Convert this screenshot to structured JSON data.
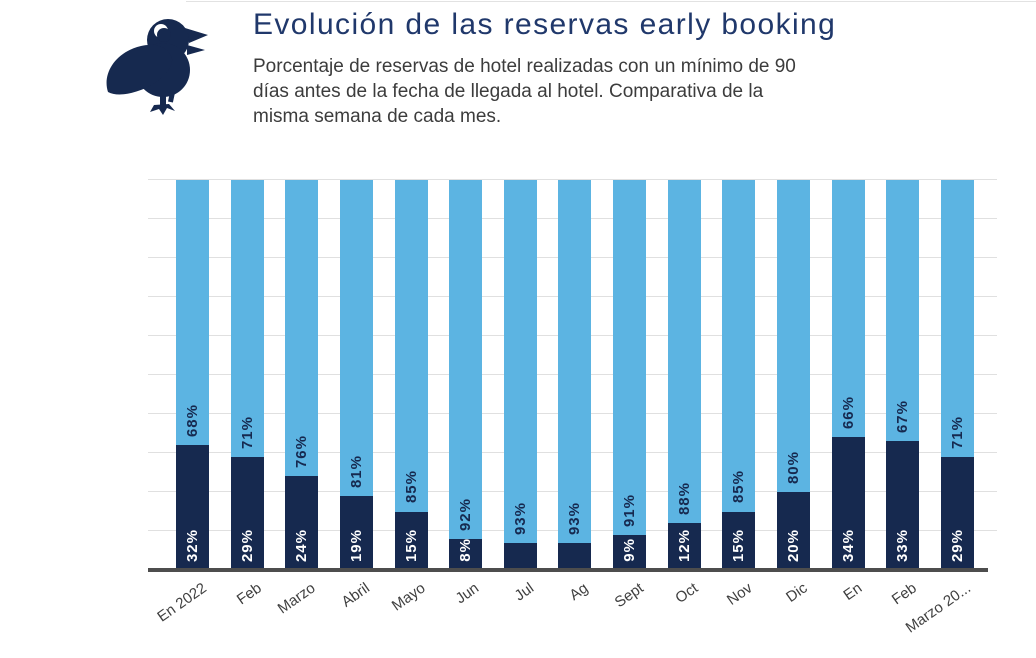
{
  "header": {
    "title": "Evolución de las reservas early booking",
    "subtitle_lines": [
      "Porcentaje de reservas de hotel realizadas con un mínimo de 90",
      "días antes de la fecha de llegada al hotel. Comparativa de la",
      "misma semana de cada mes."
    ]
  },
  "icons": {
    "logo": "bird-icon"
  },
  "colors": {
    "title": "#20386B",
    "subtitle": "#3C3C3C",
    "bar_dark": "#16294F",
    "bar_light": "#5CB4E2",
    "grid": "#E0E0E0",
    "axis_line": "#4D4D4D",
    "axis_label": "#3F3F3F",
    "label_on_dark": "#FFFFFF",
    "label_on_light": "#16294F"
  },
  "chart_data": {
    "type": "bar",
    "stacked": true,
    "orientation": "vertical",
    "title": "Evolución de las reservas early booking",
    "xlabel": "",
    "ylabel": "",
    "ylim": [
      0,
      100
    ],
    "grid": true,
    "gridline_interval": 10,
    "legend": "none",
    "categories": [
      "En 2022",
      "Feb",
      "Marzo",
      "Abril",
      "Mayo",
      "Jun",
      "Jul",
      "Ag",
      "Sept",
      "Oct",
      "Nov",
      "Dic",
      "En",
      "Feb",
      "Marzo 20..."
    ],
    "series": [
      {
        "name": "dark_bottom_segment",
        "color": "#16294F",
        "values": [
          32,
          29,
          24,
          19,
          15,
          8,
          7,
          7,
          9,
          12,
          15,
          20,
          34,
          33,
          29
        ],
        "data_labels": [
          "32%",
          "29%",
          "24%",
          "19%",
          "15%",
          "8%",
          "",
          "",
          "9%",
          "12%",
          "15%",
          "20%",
          "34%",
          "33%",
          "29%"
        ]
      },
      {
        "name": "light_top_segment",
        "color": "#5CB4E2",
        "values": [
          68,
          71,
          76,
          81,
          85,
          92,
          93,
          93,
          91,
          88,
          85,
          80,
          66,
          67,
          71
        ],
        "data_labels": [
          "68%",
          "71%",
          "76%",
          "81%",
          "85%",
          "92%",
          "93%",
          "93%",
          "91%",
          "88%",
          "85%",
          "80%",
          "66%",
          "67%",
          "71%"
        ]
      }
    ]
  }
}
